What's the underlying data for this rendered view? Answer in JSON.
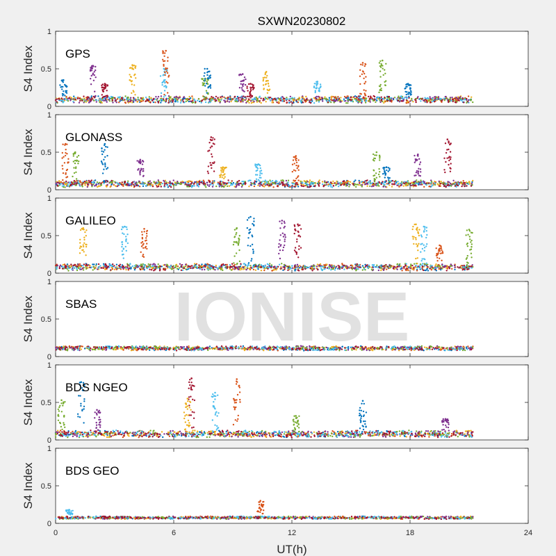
{
  "chart_data": {
    "type": "scatter",
    "title": "SXWN20230802",
    "xlabel": "UT(h)",
    "ylabel": "S4 Index",
    "xlim": [
      0,
      24
    ],
    "ylim": [
      0,
      1
    ],
    "x_ticks": [
      "0",
      "6",
      "12",
      "18",
      "24"
    ],
    "y_ticks": [
      "0",
      "0.5",
      "1"
    ],
    "watermark": "IONISE",
    "series_colors": [
      "#0072BD",
      "#D95319",
      "#EDB120",
      "#7E2F8E",
      "#77AC30",
      "#4DBEEE",
      "#A2142F"
    ],
    "data_end_hour": 21.2,
    "panels": [
      {
        "label": "GPS",
        "baseline": 0.09,
        "noise": 0.03,
        "peaks": [
          {
            "x": 0.4,
            "y": 0.35
          },
          {
            "x": 1.9,
            "y": 0.54
          },
          {
            "x": 2.5,
            "y": 0.3
          },
          {
            "x": 3.9,
            "y": 0.55
          },
          {
            "x": 5.5,
            "y": 0.5
          },
          {
            "x": 5.6,
            "y": 0.74
          },
          {
            "x": 7.6,
            "y": 0.37
          },
          {
            "x": 7.7,
            "y": 0.5
          },
          {
            "x": 9.5,
            "y": 0.43
          },
          {
            "x": 9.9,
            "y": 0.3
          },
          {
            "x": 10.7,
            "y": 0.46
          },
          {
            "x": 13.3,
            "y": 0.33
          },
          {
            "x": 15.6,
            "y": 0.58
          },
          {
            "x": 16.6,
            "y": 0.61
          },
          {
            "x": 17.9,
            "y": 0.3
          }
        ]
      },
      {
        "label": "GLONASS",
        "baseline": 0.08,
        "noise": 0.03,
        "peaks": [
          {
            "x": 0.5,
            "y": 0.61
          },
          {
            "x": 1.0,
            "y": 0.5
          },
          {
            "x": 2.5,
            "y": 0.61
          },
          {
            "x": 4.3,
            "y": 0.4
          },
          {
            "x": 7.9,
            "y": 0.7
          },
          {
            "x": 8.5,
            "y": 0.3
          },
          {
            "x": 10.3,
            "y": 0.34
          },
          {
            "x": 12.2,
            "y": 0.45
          },
          {
            "x": 16.3,
            "y": 0.5
          },
          {
            "x": 16.8,
            "y": 0.3
          },
          {
            "x": 18.4,
            "y": 0.47
          },
          {
            "x": 19.9,
            "y": 0.67
          }
        ]
      },
      {
        "label": "GALILEO",
        "baseline": 0.08,
        "noise": 0.03,
        "peaks": [
          {
            "x": 1.4,
            "y": 0.6
          },
          {
            "x": 3.5,
            "y": 0.62
          },
          {
            "x": 4.5,
            "y": 0.59
          },
          {
            "x": 9.2,
            "y": 0.6
          },
          {
            "x": 9.9,
            "y": 0.75
          },
          {
            "x": 11.5,
            "y": 0.7
          },
          {
            "x": 12.3,
            "y": 0.65
          },
          {
            "x": 18.3,
            "y": 0.65
          },
          {
            "x": 18.7,
            "y": 0.62
          },
          {
            "x": 19.5,
            "y": 0.37
          },
          {
            "x": 21.0,
            "y": 0.58
          }
        ]
      },
      {
        "label": "SBAS",
        "baseline": 0.11,
        "noise": 0.02,
        "peaks": []
      },
      {
        "label": "BDS NGEO",
        "baseline": 0.08,
        "noise": 0.03,
        "peaks": [
          {
            "x": 0.3,
            "y": 0.53
          },
          {
            "x": 1.3,
            "y": 0.77
          },
          {
            "x": 2.1,
            "y": 0.4
          },
          {
            "x": 6.9,
            "y": 0.82
          },
          {
            "x": 6.7,
            "y": 0.55
          },
          {
            "x": 8.1,
            "y": 0.63
          },
          {
            "x": 9.2,
            "y": 0.81
          },
          {
            "x": 12.2,
            "y": 0.32
          },
          {
            "x": 15.6,
            "y": 0.52
          },
          {
            "x": 19.8,
            "y": 0.28
          }
        ]
      },
      {
        "label": "BDS GEO",
        "baseline": 0.075,
        "noise": 0.012,
        "peaks": [
          {
            "x": 0.7,
            "y": 0.18
          },
          {
            "x": 10.4,
            "y": 0.3
          }
        ]
      }
    ]
  }
}
